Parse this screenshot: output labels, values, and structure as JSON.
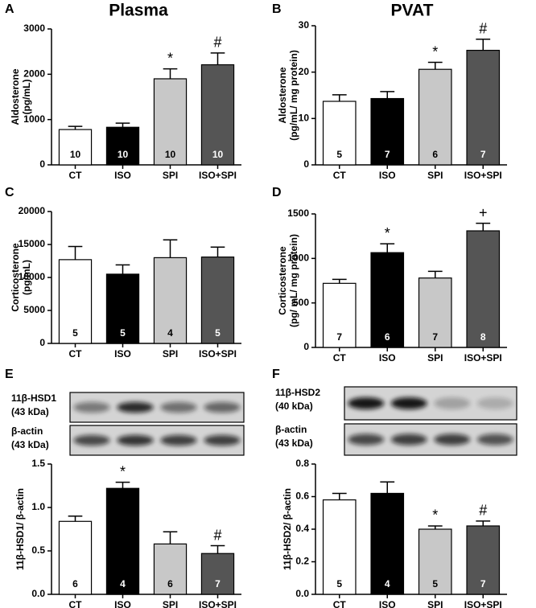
{
  "chart_data": [
    {
      "type": "bar",
      "panel": "A",
      "title": "Plasma",
      "ylabel": [
        "Aldosterone",
        "(pg/mL)"
      ],
      "categories": [
        "CT",
        "ISO",
        "SPI",
        "ISO+SPI"
      ],
      "values": [
        780,
        830,
        1900,
        2210
      ],
      "errors": [
        70,
        90,
        220,
        260
      ],
      "n": [
        10,
        10,
        10,
        10
      ],
      "markers": [
        null,
        null,
        "*",
        "#"
      ],
      "colors": [
        "#ffffff",
        "#000000",
        "#c8c8c8",
        "#555555"
      ],
      "ylim": [
        0,
        3000
      ],
      "yticks": [
        0,
        1000,
        2000,
        3000
      ]
    },
    {
      "type": "bar",
      "panel": "B",
      "title": "PVAT",
      "ylabel": [
        "Aldosterone",
        "(pg/mL/ mg protein)"
      ],
      "categories": [
        "CT",
        "ISO",
        "SPI",
        "ISO+SPI"
      ],
      "values": [
        13.7,
        14.3,
        20.6,
        24.7
      ],
      "errors": [
        1.4,
        1.5,
        1.5,
        2.4
      ],
      "n": [
        5,
        7,
        6,
        7
      ],
      "markers": [
        null,
        null,
        "*",
        "#"
      ],
      "colors": [
        "#ffffff",
        "#000000",
        "#c8c8c8",
        "#555555"
      ],
      "ylim": [
        0,
        30
      ],
      "yticks": [
        0,
        10,
        20,
        30
      ]
    },
    {
      "type": "bar",
      "panel": "C",
      "ylabel": [
        "Corticosterone",
        "(pg/mL)"
      ],
      "categories": [
        "CT",
        "ISO",
        "SPI",
        "ISO+SPI"
      ],
      "values": [
        12700,
        10500,
        13000,
        13100
      ],
      "errors": [
        2000,
        1400,
        2700,
        1500
      ],
      "n": [
        5,
        5,
        4,
        5
      ],
      "markers": [
        null,
        null,
        null,
        null
      ],
      "colors": [
        "#ffffff",
        "#000000",
        "#c8c8c8",
        "#555555"
      ],
      "ylim": [
        0,
        20000
      ],
      "yticks": [
        0,
        5000,
        10000,
        15000,
        20000
      ]
    },
    {
      "type": "bar",
      "panel": "D",
      "ylabel": [
        "Corticosterone",
        "(pg/ mL/ mg protein)"
      ],
      "categories": [
        "CT",
        "ISO",
        "SPI",
        "ISO+SPI"
      ],
      "values": [
        720,
        1065,
        780,
        1310
      ],
      "errors": [
        45,
        100,
        75,
        85
      ],
      "n": [
        7,
        6,
        7,
        8
      ],
      "markers": [
        null,
        "*",
        null,
        "+"
      ],
      "colors": [
        "#ffffff",
        "#000000",
        "#c8c8c8",
        "#555555"
      ],
      "ylim": [
        0,
        1500
      ],
      "yticks": [
        0,
        500,
        1000,
        1500
      ]
    },
    {
      "type": "bar",
      "panel": "E",
      "ylabel": [
        "11β-HSD1/ β-actin"
      ],
      "blot_labels": [
        [
          "11β-HSD1",
          "(43 kDa)"
        ],
        [
          "β-actin",
          "(43 kDa)"
        ]
      ],
      "categories": [
        "CT",
        "ISO",
        "SPI",
        "ISO+SPI"
      ],
      "values": [
        0.84,
        1.22,
        0.58,
        0.47
      ],
      "errors": [
        0.06,
        0.07,
        0.14,
        0.09
      ],
      "n": [
        6,
        4,
        6,
        7
      ],
      "markers": [
        null,
        "*",
        null,
        "#"
      ],
      "colors": [
        "#ffffff",
        "#000000",
        "#c8c8c8",
        "#555555"
      ],
      "ylim": [
        0,
        1.5
      ],
      "yticks": [
        {
          "value": 0,
          "label": "0.0"
        },
        0.5,
        {
          "value": 1,
          "label": "1.0"
        },
        1.5
      ]
    },
    {
      "type": "bar",
      "panel": "F",
      "ylabel": [
        "11β-HSD2/ β-actin"
      ],
      "blot_labels": [
        [
          "11β-HSD2",
          "(40 kDa)"
        ],
        [
          "β-actin",
          "(43 kDa)"
        ]
      ],
      "categories": [
        "CT",
        "ISO",
        "SPI",
        "ISO+SPI"
      ],
      "values": [
        0.58,
        0.62,
        0.4,
        0.42
      ],
      "errors": [
        0.04,
        0.07,
        0.02,
        0.03
      ],
      "n": [
        5,
        4,
        5,
        7
      ],
      "markers": [
        null,
        null,
        "*",
        "#"
      ],
      "colors": [
        "#ffffff",
        "#000000",
        "#c8c8c8",
        "#555555"
      ],
      "ylim": [
        0,
        0.8
      ],
      "yticks": [
        {
          "value": 0,
          "label": "0.0"
        },
        0.2,
        0.4,
        0.6,
        0.8
      ]
    }
  ]
}
